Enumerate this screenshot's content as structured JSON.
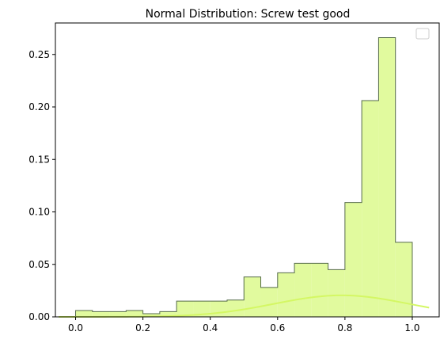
{
  "chart_data": {
    "type": "histogram",
    "title": "Normal Distribution: Screw test good",
    "xlabel": "",
    "ylabel": "",
    "xlim": [
      -0.06,
      1.08
    ],
    "ylim": [
      0,
      0.28
    ],
    "xticks": [
      0.0,
      0.2,
      0.4,
      0.6,
      0.8,
      1.0
    ],
    "xtick_labels": [
      "0.0",
      "0.2",
      "0.4",
      "0.6",
      "0.8",
      "1.0"
    ],
    "yticks": [
      0.0,
      0.05,
      0.1,
      0.15,
      0.2,
      0.25
    ],
    "ytick_labels": [
      "0.00",
      "0.05",
      "0.10",
      "0.15",
      "0.20",
      "0.25"
    ],
    "bin_edges": [
      0.0,
      0.05,
      0.1,
      0.15,
      0.2,
      0.25,
      0.3,
      0.35,
      0.4,
      0.45,
      0.5,
      0.55,
      0.6,
      0.65,
      0.7,
      0.75,
      0.8,
      0.85,
      0.9,
      0.95,
      1.0
    ],
    "bin_values": [
      0.006,
      0.005,
      0.005,
      0.006,
      0.003,
      0.005,
      0.015,
      0.015,
      0.015,
      0.016,
      0.038,
      0.028,
      0.042,
      0.051,
      0.051,
      0.045,
      0.109,
      0.206,
      0.266,
      0.071
    ],
    "curve": {
      "type": "normal-pdf",
      "mean": 0.79,
      "std": 0.2,
      "scale": 0.0205,
      "x_range": [
        -0.05,
        1.05
      ]
    },
    "legend": {
      "placement": "top-right",
      "entries": []
    },
    "grid": false,
    "colors": {
      "bar_fill": "#e1fa9e",
      "bar_edge": "#556b4a",
      "curve": "#d4f764"
    }
  }
}
